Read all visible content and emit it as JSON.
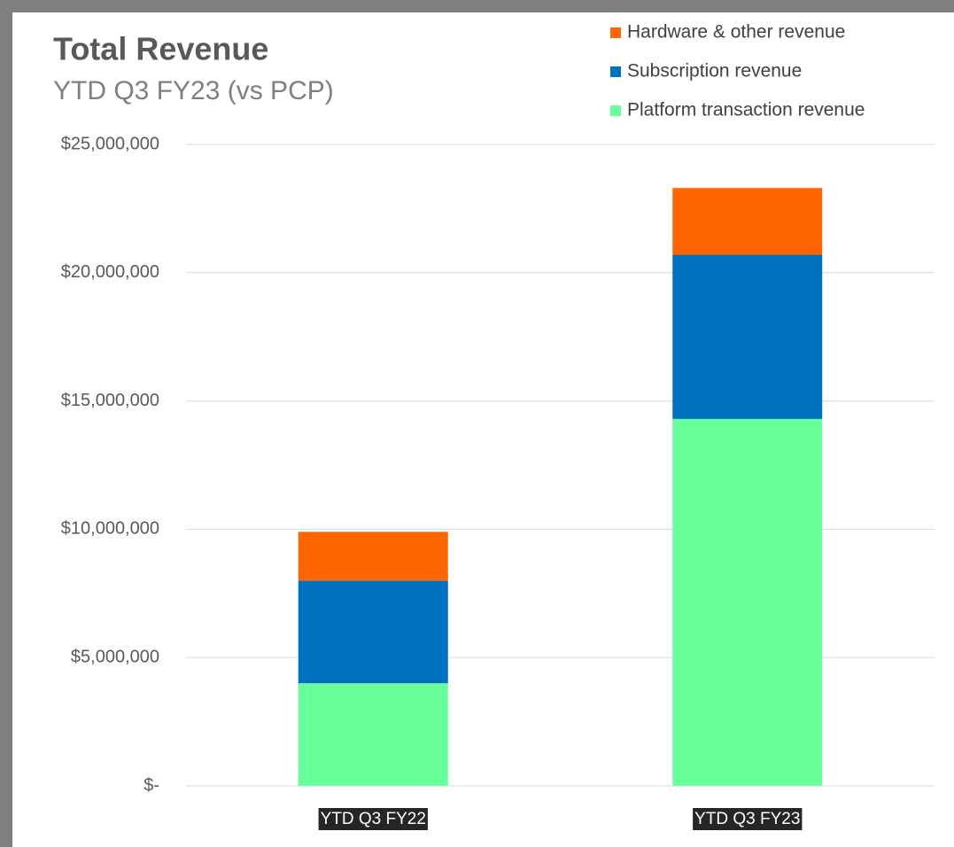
{
  "chart_data": {
    "type": "stacked_bar",
    "title": "Total Revenue",
    "subtitle": "YTD Q3 FY23 (vs PCP)",
    "categories": [
      "YTD Q3 FY22",
      "YTD Q3 FY23"
    ],
    "series": [
      {
        "name": "Platform transaction revenue",
        "color": "#66ff99",
        "values": [
          4000000,
          14300000
        ]
      },
      {
        "name": "Subscription revenue",
        "color": "#0070c0",
        "values": [
          4000000,
          6400000
        ]
      },
      {
        "name": "Hardware & other revenue",
        "color": "#ff6600",
        "values": [
          1900000,
          2600000
        ]
      }
    ],
    "ylim": [
      0,
      25000000
    ],
    "yticks": [
      {
        "value": 0,
        "label": "$-"
      },
      {
        "value": 5000000,
        "label": "$5,000,000"
      },
      {
        "value": 10000000,
        "label": "$10,000,000"
      },
      {
        "value": 15000000,
        "label": "$15,000,000"
      },
      {
        "value": 20000000,
        "label": "$20,000,000"
      },
      {
        "value": 25000000,
        "label": "$25,000,000"
      }
    ],
    "grid": true,
    "legend": "top-right"
  }
}
